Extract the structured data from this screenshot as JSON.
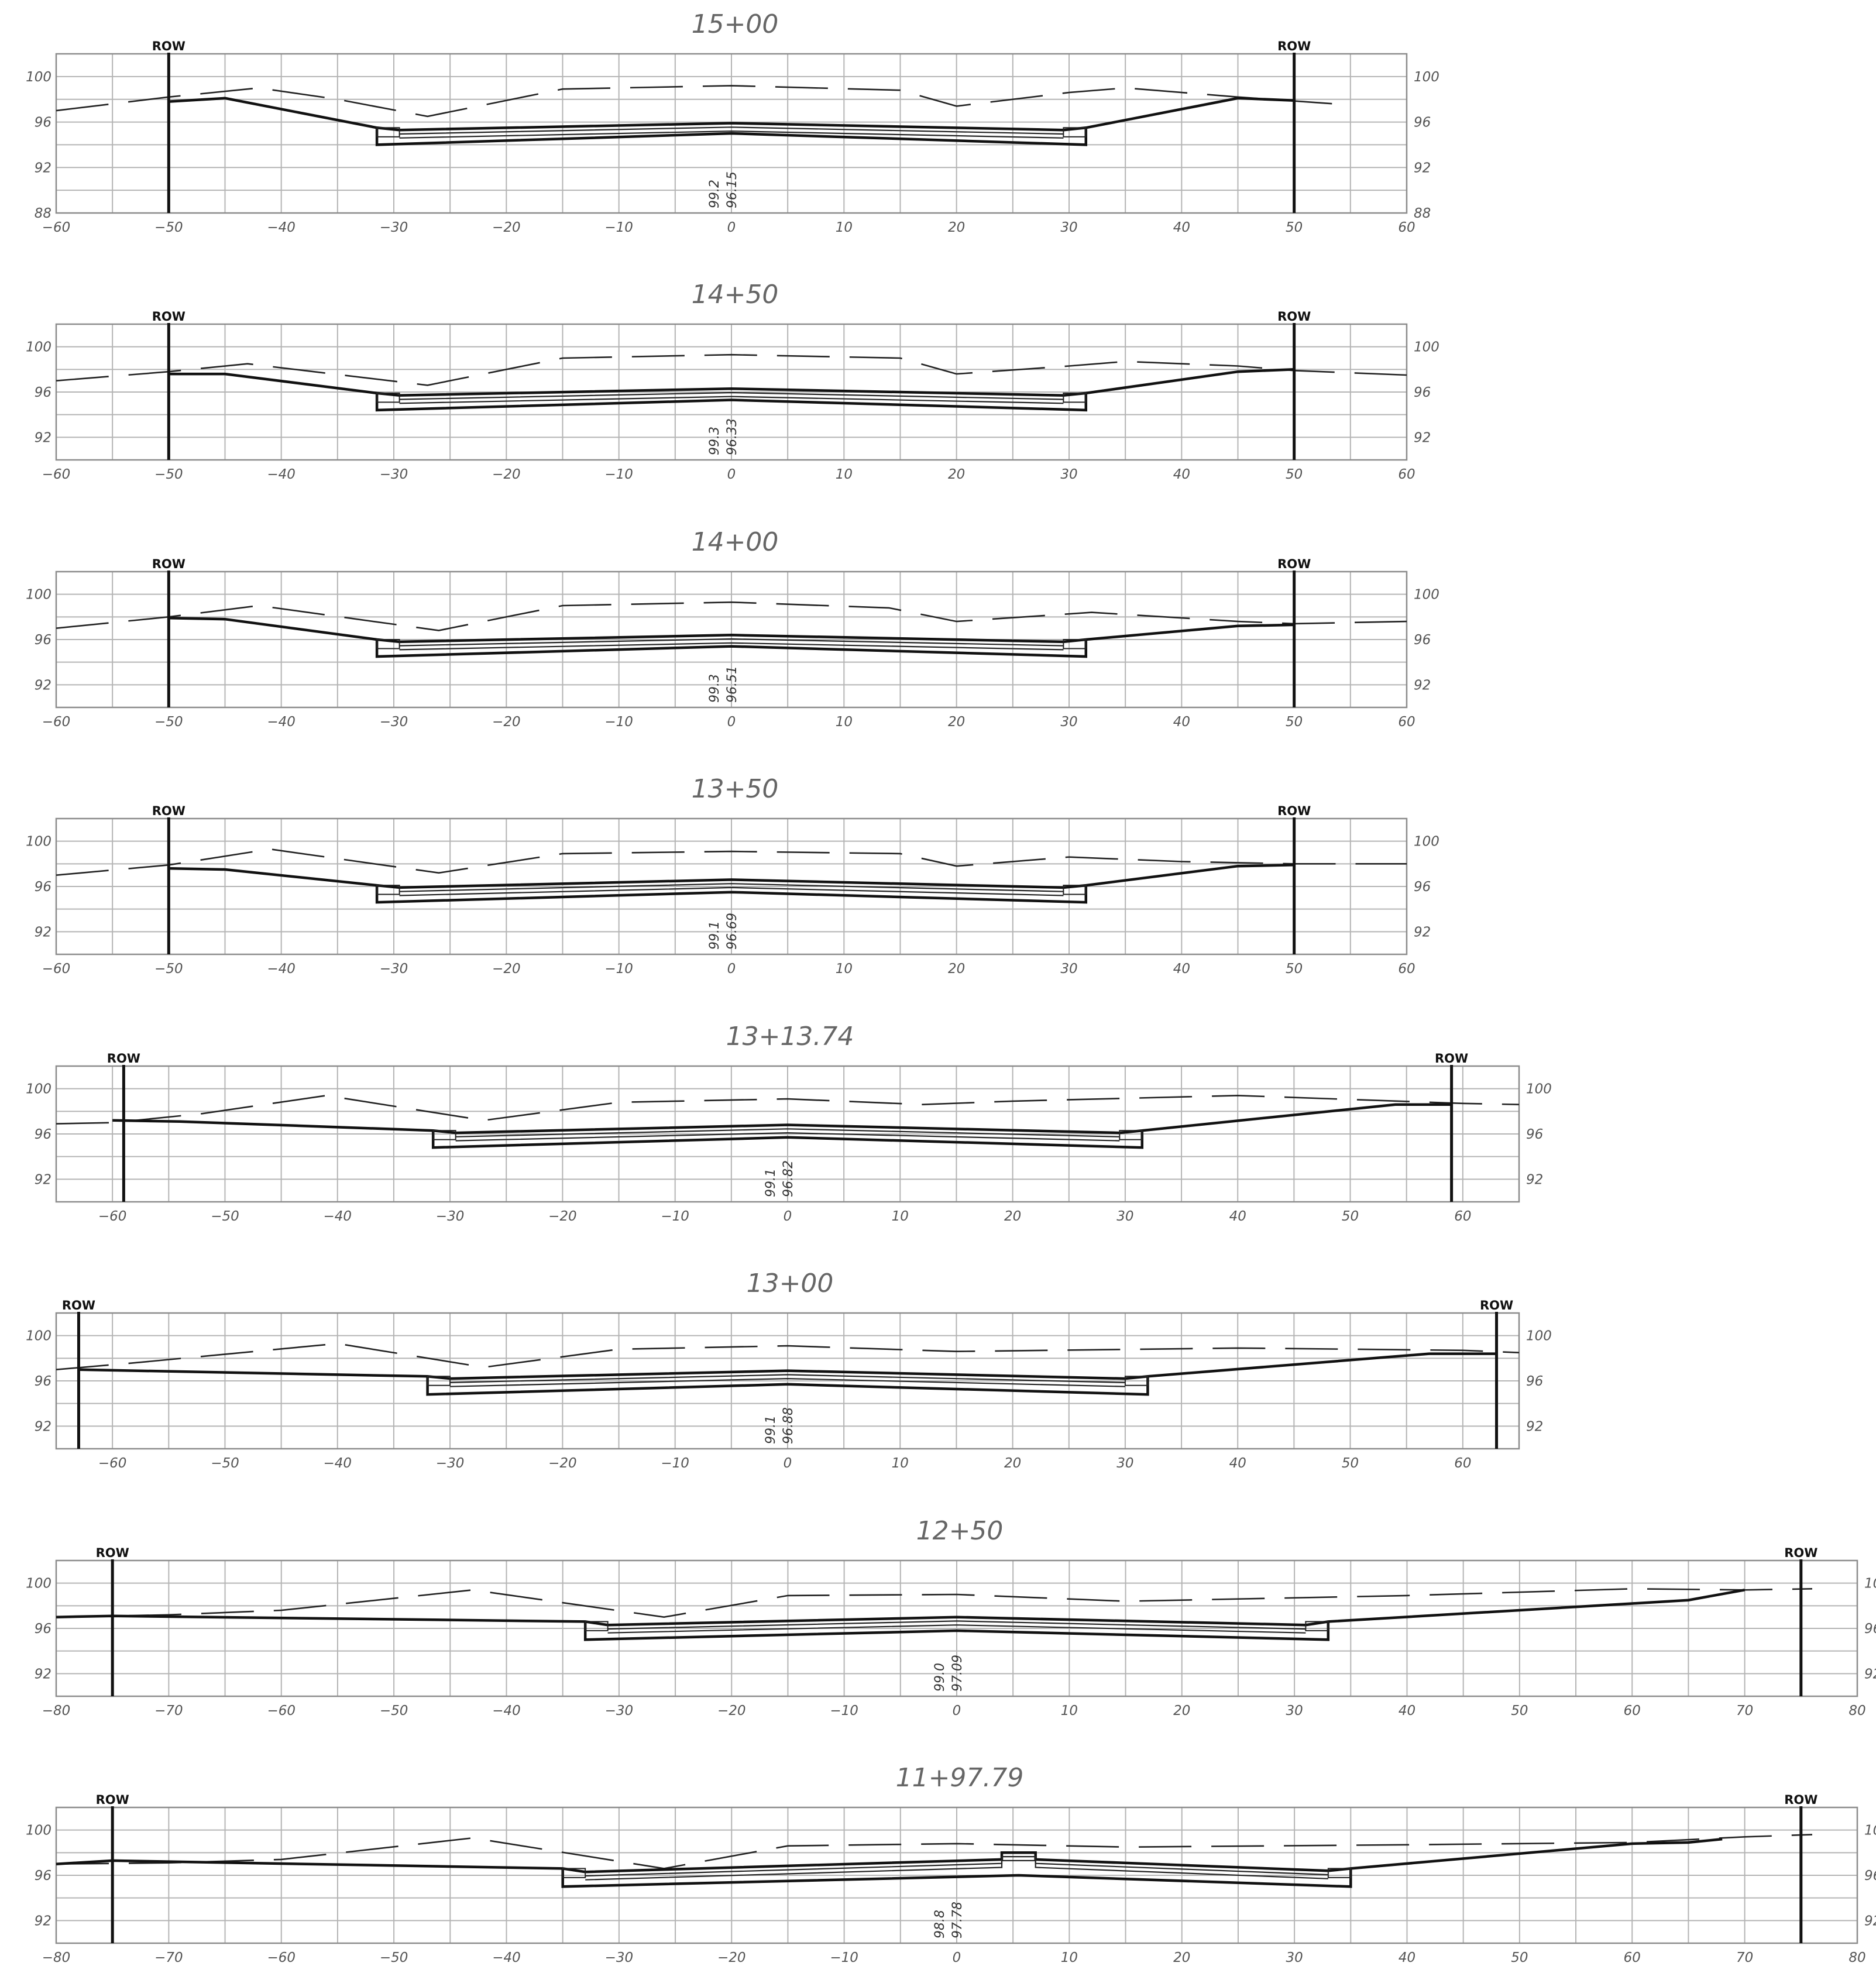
{
  "drawing": {
    "sections": [
      {
        "station": "15+00",
        "x_range": [
          -60,
          60
        ],
        "x_ticks": [
          "−60",
          "−50",
          "−40",
          "−30",
          "−20",
          "−10",
          "0",
          "10",
          "20",
          "30",
          "40",
          "50",
          "60"
        ],
        "y_range": [
          88,
          102
        ],
        "y_ticks": [
          "100",
          "96",
          "92",
          "88"
        ],
        "row_label": "ROW",
        "row_offsets": [
          -50,
          50
        ],
        "centerline_labels": [
          "99.2",
          "96.15"
        ],
        "existing_ground": [
          [
            -60,
            97.0
          ],
          [
            -50,
            98.2
          ],
          [
            -42,
            99.0
          ],
          [
            -35,
            98.0
          ],
          [
            -27,
            96.5
          ],
          [
            -15,
            98.9
          ],
          [
            0,
            99.2
          ],
          [
            15,
            98.8
          ],
          [
            20,
            97.4
          ],
          [
            30,
            98.6
          ],
          [
            35,
            99.0
          ],
          [
            45,
            98.2
          ],
          [
            55,
            97.5
          ]
        ],
        "proposed_grade": [
          [
            -50,
            97.8
          ],
          [
            -45,
            98.1
          ],
          [
            -31.5,
            95.5
          ],
          [
            -29.5,
            95.3
          ],
          [
            0,
            95.9
          ],
          [
            29.5,
            95.3
          ],
          [
            31.5,
            95.5
          ],
          [
            45,
            98.1
          ],
          [
            50,
            97.9
          ]
        ],
        "subbase_bottom": [
          [
            -31.5,
            94.0
          ],
          [
            0,
            95.0
          ],
          [
            31.5,
            94.0
          ]
        ],
        "pavement_depth": 0.35,
        "curb_widths": [
          [
            -31.5,
            -29.5
          ],
          [
            29.5,
            31.5
          ]
        ]
      },
      {
        "station": "14+50",
        "x_range": [
          -60,
          60
        ],
        "x_ticks": [
          "−60",
          "−50",
          "−40",
          "−30",
          "−20",
          "−10",
          "0",
          "10",
          "20",
          "30",
          "40",
          "50",
          "60"
        ],
        "y_range": [
          90,
          102
        ],
        "y_ticks": [
          "100",
          "96",
          "92"
        ],
        "row_label": "ROW",
        "row_offsets": [
          -50,
          50
        ],
        "centerline_labels": [
          "99.3",
          "96.33"
        ],
        "existing_ground": [
          [
            -60,
            97.0
          ],
          [
            -50,
            97.8
          ],
          [
            -43,
            98.5
          ],
          [
            -27,
            96.6
          ],
          [
            -15,
            99.0
          ],
          [
            0,
            99.3
          ],
          [
            15,
            99.0
          ],
          [
            20,
            97.6
          ],
          [
            30,
            98.3
          ],
          [
            35,
            98.7
          ],
          [
            45,
            98.3
          ],
          [
            50,
            97.9
          ],
          [
            60,
            97.5
          ]
        ],
        "proposed_grade": [
          [
            -50,
            97.6
          ],
          [
            -45,
            97.6
          ],
          [
            -31.5,
            95.9
          ],
          [
            -29.5,
            95.7
          ],
          [
            0,
            96.3
          ],
          [
            29.5,
            95.7
          ],
          [
            31.5,
            95.9
          ],
          [
            45,
            97.8
          ],
          [
            50,
            98.0
          ]
        ],
        "subbase_bottom": [
          [
            -31.5,
            94.4
          ],
          [
            0,
            95.3
          ],
          [
            31.5,
            94.4
          ]
        ],
        "pavement_depth": 0.35,
        "curb_widths": [
          [
            -31.5,
            -29.5
          ],
          [
            29.5,
            31.5
          ]
        ]
      },
      {
        "station": "14+00",
        "x_range": [
          -60,
          60
        ],
        "x_ticks": [
          "−60",
          "−50",
          "−40",
          "−30",
          "−20",
          "−10",
          "0",
          "10",
          "20",
          "30",
          "40",
          "50",
          "60"
        ],
        "y_range": [
          90,
          102
        ],
        "y_ticks": [
          "100",
          "96",
          "92"
        ],
        "row_label": "ROW",
        "row_offsets": [
          -50,
          50
        ],
        "centerline_labels": [
          "99.3",
          "96.51"
        ],
        "existing_ground": [
          [
            -60,
            97.0
          ],
          [
            -50,
            98.0
          ],
          [
            -42,
            99.0
          ],
          [
            -26,
            96.8
          ],
          [
            -15,
            99.0
          ],
          [
            0,
            99.3
          ],
          [
            14,
            98.8
          ],
          [
            20,
            97.6
          ],
          [
            32,
            98.4
          ],
          [
            45,
            97.6
          ],
          [
            50,
            97.4
          ],
          [
            60,
            97.6
          ]
        ],
        "proposed_grade": [
          [
            -50,
            97.9
          ],
          [
            -45,
            97.8
          ],
          [
            -31.5,
            96.0
          ],
          [
            -29.5,
            95.8
          ],
          [
            0,
            96.4
          ],
          [
            29.5,
            95.8
          ],
          [
            31.5,
            96.0
          ],
          [
            45,
            97.2
          ],
          [
            50,
            97.3
          ]
        ],
        "subbase_bottom": [
          [
            -31.5,
            94.5
          ],
          [
            0,
            95.4
          ],
          [
            31.5,
            94.5
          ]
        ],
        "pavement_depth": 0.35,
        "curb_widths": [
          [
            -31.5,
            -29.5
          ],
          [
            29.5,
            31.5
          ]
        ]
      },
      {
        "station": "13+50",
        "x_range": [
          -60,
          60
        ],
        "x_ticks": [
          "−60",
          "−50",
          "−40",
          "−30",
          "−20",
          "−10",
          "0",
          "10",
          "20",
          "30",
          "40",
          "50",
          "60"
        ],
        "y_range": [
          90,
          102
        ],
        "y_ticks": [
          "100",
          "96",
          "92"
        ],
        "row_label": "ROW",
        "row_offsets": [
          -50,
          50
        ],
        "centerline_labels": [
          "99.1",
          "96.69"
        ],
        "existing_ground": [
          [
            -60,
            97.0
          ],
          [
            -50,
            97.9
          ],
          [
            -41,
            99.3
          ],
          [
            -26,
            97.2
          ],
          [
            -15,
            98.9
          ],
          [
            0,
            99.1
          ],
          [
            15,
            98.9
          ],
          [
            20,
            97.8
          ],
          [
            30,
            98.6
          ],
          [
            40,
            98.2
          ],
          [
            50,
            98.0
          ],
          [
            60,
            98.0
          ]
        ],
        "proposed_grade": [
          [
            -50,
            97.6
          ],
          [
            -45,
            97.5
          ],
          [
            -31.5,
            96.1
          ],
          [
            -29.5,
            95.9
          ],
          [
            0,
            96.6
          ],
          [
            29.5,
            95.9
          ],
          [
            31.5,
            96.1
          ],
          [
            45,
            97.8
          ],
          [
            50,
            97.9
          ]
        ],
        "subbase_bottom": [
          [
            -31.5,
            94.6
          ],
          [
            0,
            95.5
          ],
          [
            31.5,
            94.6
          ]
        ],
        "pavement_depth": 0.35,
        "curb_widths": [
          [
            -31.5,
            -29.5
          ],
          [
            29.5,
            31.5
          ]
        ]
      },
      {
        "station": "13+13.74",
        "x_range": [
          -65,
          65
        ],
        "x_ticks": [
          "−60",
          "−50",
          "−40",
          "−30",
          "−20",
          "−10",
          "0",
          "10",
          "20",
          "30",
          "40",
          "50",
          "60"
        ],
        "y_range": [
          90,
          102
        ],
        "y_ticks": [
          "100",
          "96",
          "92"
        ],
        "row_label": "ROW",
        "row_offsets": [
          -59,
          59
        ],
        "centerline_labels": [
          "99.1",
          "96.82"
        ],
        "existing_ground": [
          [
            -65,
            96.9
          ],
          [
            -60,
            97.0
          ],
          [
            -52,
            97.8
          ],
          [
            -41,
            99.4
          ],
          [
            -27,
            97.2
          ],
          [
            -15,
            98.8
          ],
          [
            0,
            99.1
          ],
          [
            12,
            98.6
          ],
          [
            20,
            98.9
          ],
          [
            40,
            99.4
          ],
          [
            60,
            98.7
          ],
          [
            65,
            98.6
          ]
        ],
        "proposed_grade": [
          [
            -60,
            97.2
          ],
          [
            -54,
            97.1
          ],
          [
            -31.5,
            96.3
          ],
          [
            -29.5,
            96.1
          ],
          [
            0,
            96.8
          ],
          [
            29.5,
            96.1
          ],
          [
            31.5,
            96.3
          ],
          [
            54,
            98.6
          ],
          [
            59,
            98.6
          ]
        ],
        "subbase_bottom": [
          [
            -31.5,
            94.8
          ],
          [
            0,
            95.7
          ],
          [
            31.5,
            94.8
          ]
        ],
        "pavement_depth": 0.35,
        "curb_widths": [
          [
            -31.5,
            -29.5
          ],
          [
            29.5,
            31.5
          ]
        ]
      },
      {
        "station": "13+00",
        "x_range": [
          -65,
          65
        ],
        "x_ticks": [
          "−60",
          "−50",
          "−40",
          "−30",
          "−20",
          "−10",
          "0",
          "10",
          "20",
          "30",
          "40",
          "50",
          "60"
        ],
        "y_range": [
          90,
          102
        ],
        "y_ticks": [
          "100",
          "96",
          "92"
        ],
        "row_label": "ROW",
        "row_offsets": [
          -63,
          63
        ],
        "centerline_labels": [
          "99.1",
          "96.88"
        ],
        "existing_ground": [
          [
            -65,
            97.0
          ],
          [
            -58,
            97.6
          ],
          [
            -40,
            99.3
          ],
          [
            -27,
            97.2
          ],
          [
            -15,
            98.8
          ],
          [
            0,
            99.1
          ],
          [
            15,
            98.6
          ],
          [
            40,
            98.9
          ],
          [
            60,
            98.7
          ],
          [
            65,
            98.5
          ]
        ],
        "proposed_grade": [
          [
            -63,
            97.0
          ],
          [
            -58,
            96.9
          ],
          [
            -32,
            96.4
          ],
          [
            -30,
            96.2
          ],
          [
            0,
            96.9
          ],
          [
            30,
            96.2
          ],
          [
            32,
            96.4
          ],
          [
            57,
            98.4
          ],
          [
            63,
            98.4
          ]
        ],
        "subbase_bottom": [
          [
            -32,
            94.8
          ],
          [
            0,
            95.7
          ],
          [
            32,
            94.8
          ]
        ],
        "pavement_depth": 0.35,
        "curb_widths": [
          [
            -32,
            -30
          ],
          [
            30,
            32
          ]
        ]
      },
      {
        "station": "12+50",
        "x_range": [
          -80,
          80
        ],
        "x_ticks": [
          "−80",
          "−70",
          "−60",
          "−50",
          "−40",
          "−30",
          "−20",
          "−10",
          "0",
          "10",
          "20",
          "30",
          "40",
          "50",
          "60",
          "70",
          "80"
        ],
        "y_range": [
          90,
          102
        ],
        "y_ticks": [
          "100",
          "96",
          "92"
        ],
        "row_label": "ROW",
        "row_offsets": [
          -75,
          75
        ],
        "centerline_labels": [
          "99.0",
          "97.09"
        ],
        "existing_ground": [
          [
            -80,
            97.0
          ],
          [
            -70,
            97.2
          ],
          [
            -60,
            97.6
          ],
          [
            -43,
            99.4
          ],
          [
            -26,
            97.0
          ],
          [
            -15,
            98.9
          ],
          [
            0,
            99.0
          ],
          [
            15,
            98.4
          ],
          [
            40,
            98.9
          ],
          [
            60,
            99.5
          ],
          [
            70,
            99.4
          ],
          [
            76,
            99.5
          ]
        ],
        "proposed_grade": [
          [
            -80,
            97.0
          ],
          [
            -75,
            97.1
          ],
          [
            -33,
            96.6
          ],
          [
            -31,
            96.3
          ],
          [
            0,
            97.0
          ],
          [
            31,
            96.3
          ],
          [
            33,
            96.6
          ],
          [
            60,
            98.2
          ],
          [
            65,
            98.5
          ],
          [
            70,
            99.4
          ]
        ],
        "subbase_bottom": [
          [
            -33,
            95.0
          ],
          [
            0,
            95.8
          ],
          [
            33,
            95.0
          ]
        ],
        "pavement_depth": 0.35,
        "curb_widths": [
          [
            -33,
            -31
          ],
          [
            31,
            33
          ]
        ]
      },
      {
        "station": "11+97.79",
        "x_range": [
          -80,
          80
        ],
        "x_ticks": [
          "−80",
          "−70",
          "−60",
          "−50",
          "−40",
          "−30",
          "−20",
          "−10",
          "0",
          "10",
          "20",
          "30",
          "40",
          "50",
          "60",
          "70",
          "80"
        ],
        "y_range": [
          90,
          102
        ],
        "y_ticks": [
          "100",
          "96",
          "92"
        ],
        "row_label": "ROW",
        "row_offsets": [
          -75,
          75
        ],
        "centerline_labels": [
          "98.8",
          "97.78"
        ],
        "existing_ground": [
          [
            -80,
            97.0
          ],
          [
            -70,
            97.1
          ],
          [
            -60,
            97.4
          ],
          [
            -43,
            99.3
          ],
          [
            -26,
            96.6
          ],
          [
            -15,
            98.6
          ],
          [
            0,
            98.8
          ],
          [
            15,
            98.5
          ],
          [
            40,
            98.7
          ],
          [
            60,
            98.9
          ],
          [
            70,
            99.4
          ],
          [
            76,
            99.6
          ]
        ],
        "proposed_grade": [
          [
            -80,
            97.0
          ],
          [
            -75,
            97.3
          ],
          [
            -35,
            96.6
          ],
          [
            -33,
            96.3
          ],
          [
            4,
            97.4
          ],
          [
            4,
            98.0
          ],
          [
            7,
            98.0
          ],
          [
            7,
            97.4
          ],
          [
            33,
            96.4
          ],
          [
            35,
            96.6
          ],
          [
            60,
            98.8
          ],
          [
            65,
            98.9
          ],
          [
            68,
            99.2
          ]
        ],
        "subbase_bottom": [
          [
            -35,
            95.0
          ],
          [
            5.5,
            96.0
          ],
          [
            35,
            95.0
          ]
        ],
        "pavement_depth": 0.35,
        "curb_widths": [
          [
            -35,
            -33
          ],
          [
            33,
            35
          ]
        ]
      }
    ]
  }
}
